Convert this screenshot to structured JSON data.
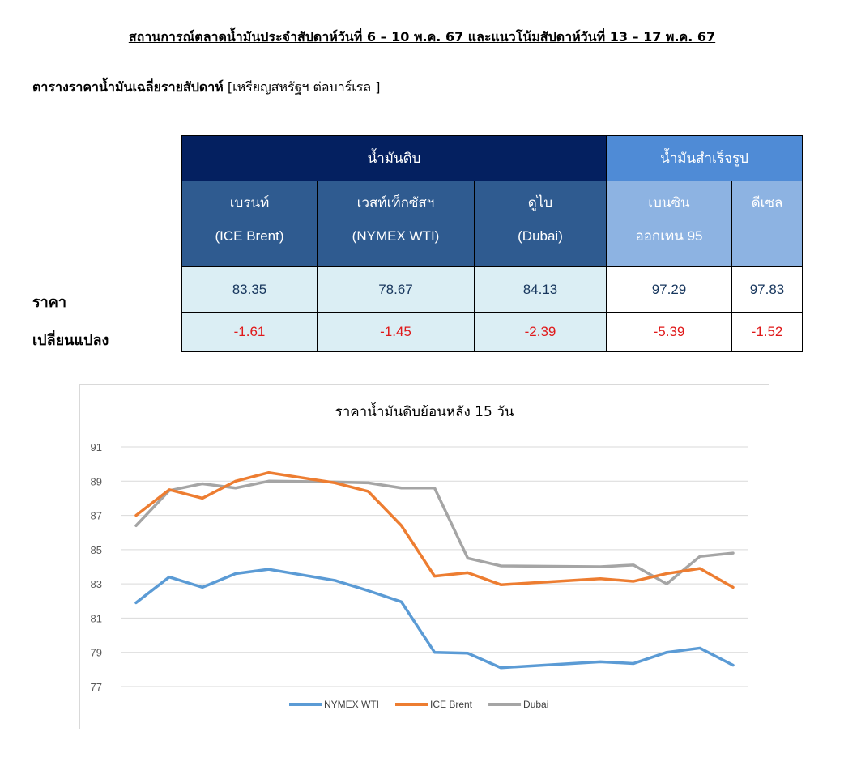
{
  "heading": "สถานการณ์ตลาดน้ำมันประจำสัปดาห์วันที่ 6 – 10  พ.ค. 67 และแนวโน้มสัปดาห์วันที่ 13 – 17 พ.ค. 67",
  "table_title": "ตารางราคาน้ำมันเฉลี่ยรายสัปดาห์",
  "table_unit": "[เหรียญสหรัฐฯ ต่อบาร์เรล ]",
  "table": {
    "group_crude": "น้ำมันดิบ",
    "group_refined": "น้ำมันสำเร็จรูป",
    "columns": [
      {
        "name": "เบรนท์",
        "sub": "(ICE Brent)",
        "price": "83.35",
        "change": "-1.61"
      },
      {
        "name": "เวสท์เท็กซัสฯ",
        "sub": "(NYMEX WTI)",
        "price": "78.67",
        "change": "-1.45"
      },
      {
        "name": "ดูไบ",
        "sub": "(Dubai)",
        "price": "84.13",
        "change": "-2.39"
      },
      {
        "name": "เบนซิน",
        "sub": "ออกเทน  95",
        "price": "97.29",
        "change": "-5.39"
      },
      {
        "name": "ดีเซล",
        "sub": "",
        "price": "97.83",
        "change": "-1.52"
      }
    ],
    "row_price_label": "ราคา",
    "row_change_label": "เปลี่ยนแปลง"
  },
  "colors": {
    "crude_header": "#042060",
    "refined_header": "#4f8bd6",
    "negative": "#e0191a",
    "wti": "#5b9bd5",
    "brent": "#ed7d31",
    "dubai": "#a5a5a5"
  },
  "chart_data": {
    "type": "line",
    "title": "ราคาน้ำมันดิบย้อนหลัง 15 วัน",
    "xlabel": "",
    "ylabel": "",
    "ylim": [
      77,
      91
    ],
    "yticks": [
      77,
      79,
      81,
      83,
      85,
      87,
      89,
      91
    ],
    "grid": true,
    "legend": "bottom",
    "x_index": [
      0,
      1,
      2,
      3,
      4,
      6,
      7,
      8,
      9,
      10,
      11,
      14,
      15,
      16,
      17,
      18
    ],
    "series": [
      {
        "name": "NYMEX WTI",
        "color": "#5b9bd5",
        "values": [
          81.9,
          83.4,
          82.8,
          83.6,
          83.85,
          83.2,
          82.6,
          81.95,
          79.0,
          78.95,
          78.1,
          78.45,
          78.35,
          79.0,
          79.25,
          78.25
        ]
      },
      {
        "name": "ICE Brent",
        "color": "#ed7d31",
        "values": [
          87.0,
          88.5,
          88.0,
          89.0,
          89.5,
          88.9,
          88.4,
          86.4,
          83.45,
          83.65,
          82.95,
          83.3,
          83.15,
          83.6,
          83.9,
          82.8
        ]
      },
      {
        "name": "Dubai",
        "color": "#a5a5a5",
        "values": [
          86.4,
          88.45,
          88.85,
          88.6,
          89.0,
          88.95,
          88.9,
          88.6,
          88.6,
          84.5,
          84.05,
          84.0,
          84.1,
          83.0,
          84.6,
          84.8
        ]
      }
    ]
  }
}
